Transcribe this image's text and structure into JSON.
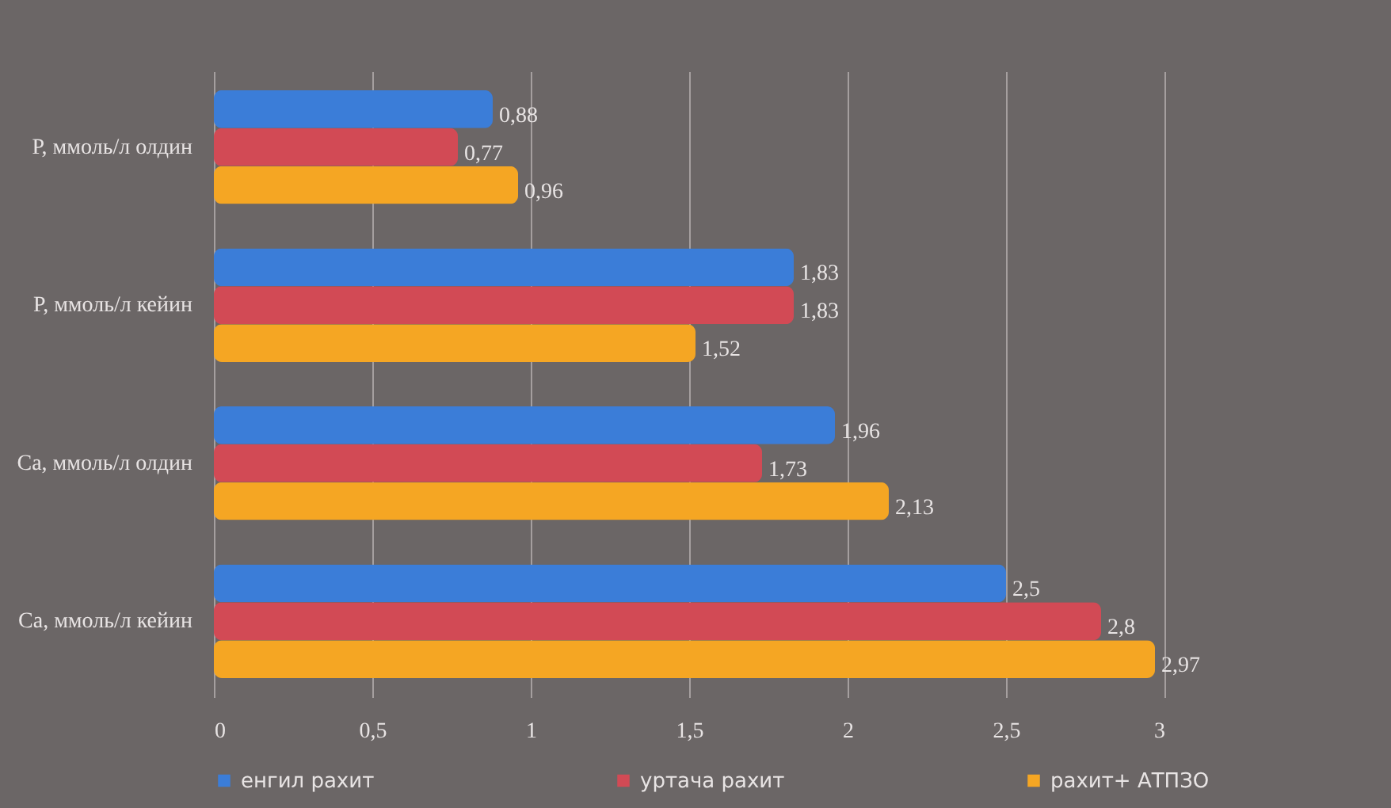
{
  "chart_data": {
    "type": "bar",
    "orientation": "horizontal",
    "categories": [
      "Р, ммоль/л олдин",
      "Р, ммоль/л кейин",
      "Са, ммоль/л олдин",
      "Са, ммоль/л кейин"
    ],
    "series": [
      {
        "name": "енгил рахит",
        "color": "#3b7dd8",
        "values": [
          0.88,
          1.83,
          1.96,
          2.5
        ],
        "value_labels": [
          "0,88",
          "1,83",
          "1,96",
          "2,5"
        ]
      },
      {
        "name": "уртача рахит",
        "color": "#d24a55",
        "values": [
          0.77,
          1.83,
          1.73,
          2.8
        ],
        "value_labels": [
          "0,77",
          "1,83",
          "1,73",
          "2,8"
        ]
      },
      {
        "name": "рахит+ АТПЗО",
        "color": "#f5a623",
        "values": [
          0.96,
          1.52,
          2.13,
          2.97
        ],
        "value_labels": [
          "0,96",
          "1,52",
          "2,13",
          "2,97"
        ]
      }
    ],
    "xlim": [
      0,
      3
    ],
    "xticks": [
      0,
      {
        "value": 0.5,
        "label": "0,5"
      },
      1,
      {
        "value": 1.5,
        "label": "1,5"
      },
      2,
      {
        "value": 2.5,
        "label": "2,5"
      },
      3
    ],
    "grid": "x",
    "legend": "bottom"
  }
}
